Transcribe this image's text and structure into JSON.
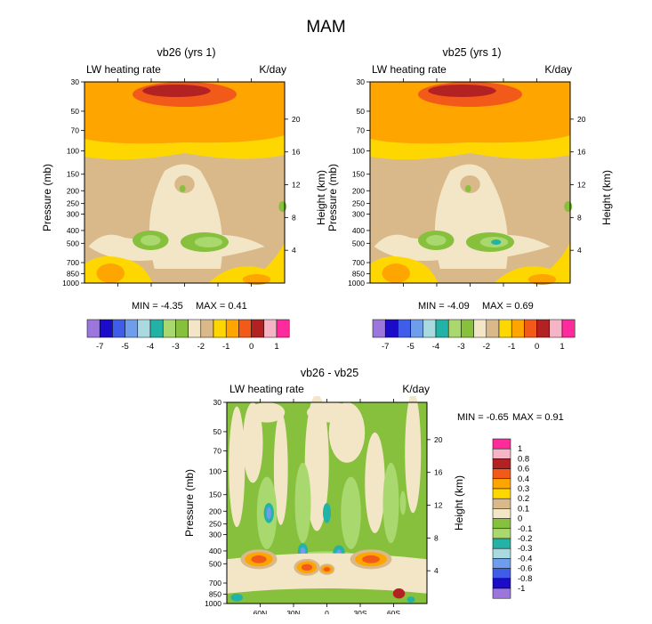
{
  "title": "MAM",
  "palette": [
    "#9B77DD",
    "#1C0BC9",
    "#3F5DE8",
    "#6E9DEB",
    "#A8DAE0",
    "#22B3A6",
    "#A8D86E",
    "#86C03C",
    "#F3E6C6",
    "#D9B98A",
    "#FFD700",
    "#FFA500",
    "#F25A1A",
    "#B22222",
    "#F6B5C6",
    "#FF2A9C"
  ],
  "lat_ticks": [
    "60N",
    "30N",
    "0",
    "30S",
    "60S"
  ],
  "pressure_ticks": [
    "30",
    "50",
    "70",
    "100",
    "150",
    "200",
    "250",
    "300",
    "400",
    "500",
    "700",
    "850",
    "1000"
  ],
  "height_ticks": [
    "20",
    "16",
    "12",
    "8",
    "4"
  ],
  "chart_data": [
    {
      "type": "heatmap",
      "title": "vb26 (yrs 1)",
      "left_label": "LW heating rate",
      "right_label": "K/day",
      "xlabel": "",
      "ylabel": "Pressure (mb)",
      "y2label": "Height (km)",
      "min_text": "MIN =  -4.35",
      "max_text": "MAX =   0.41",
      "min": -4.35,
      "max": 0.41,
      "colorbar": {
        "orientation": "horizontal",
        "labels": [
          "-7",
          "-5",
          "-4",
          "-3",
          "-2",
          "-1",
          "0",
          "1"
        ]
      }
    },
    {
      "type": "heatmap",
      "title": "vb25 (yrs 1)",
      "left_label": "LW heating rate",
      "right_label": "K/day",
      "xlabel": "",
      "ylabel": "Pressure (mb)",
      "y2label": "Height (km)",
      "min_text": "MIN =  -4.09",
      "max_text": "MAX =   0.69",
      "min": -4.09,
      "max": 0.69,
      "colorbar": {
        "orientation": "horizontal",
        "labels": [
          "-7",
          "-5",
          "-4",
          "-3",
          "-2",
          "-1",
          "0",
          "1"
        ]
      }
    },
    {
      "type": "heatmap",
      "title": "vb26 - vb25",
      "left_label": "LW heating rate",
      "right_label": "K/day",
      "xlabel": "",
      "ylabel": "Pressure (mb)",
      "y2label": "Height (km)",
      "min_text": "MIN =  -0.65",
      "max_text": "MAX =   0.91",
      "min": -0.65,
      "max": 0.91,
      "colorbar": {
        "orientation": "vertical",
        "labels": [
          "1",
          "0.8",
          "0.6",
          "0.4",
          "0.3",
          "0.2",
          "0.1",
          "0",
          "-0.1",
          "-0.2",
          "-0.3",
          "-0.4",
          "-0.6",
          "-0.8",
          "-1"
        ]
      }
    }
  ]
}
